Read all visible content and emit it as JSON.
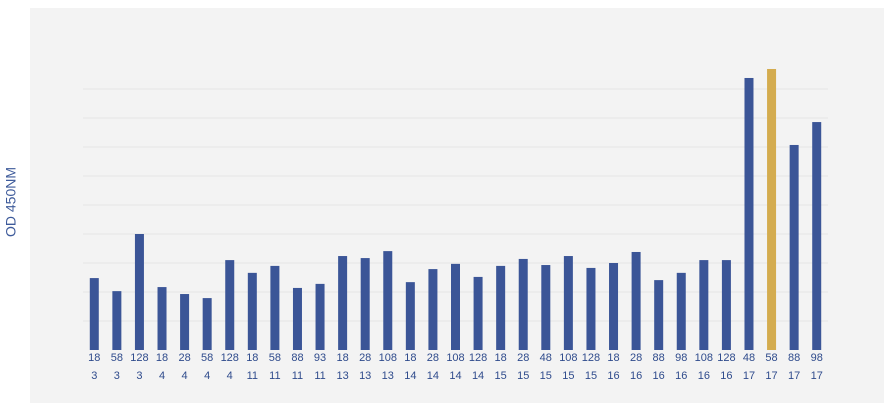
{
  "chart_data": {
    "type": "bar",
    "y_label": "OD 450NM",
    "categories": [
      [
        "18",
        "3"
      ],
      [
        "58",
        "3"
      ],
      [
        "128",
        "3"
      ],
      [
        "18",
        "4"
      ],
      [
        "28",
        "4"
      ],
      [
        "58",
        "4"
      ],
      [
        "128",
        "4"
      ],
      [
        "18",
        "11"
      ],
      [
        "58",
        "11"
      ],
      [
        "88",
        "11"
      ],
      [
        "93",
        "11"
      ],
      [
        "18",
        "13"
      ],
      [
        "28",
        "13"
      ],
      [
        "108",
        "13"
      ],
      [
        "18",
        "14"
      ],
      [
        "28",
        "14"
      ],
      [
        "108",
        "14"
      ],
      [
        "128",
        "14"
      ],
      [
        "18",
        "15"
      ],
      [
        "28",
        "15"
      ],
      [
        "48",
        "15"
      ],
      [
        "108",
        "15"
      ],
      [
        "128",
        "15"
      ],
      [
        "18",
        "16"
      ],
      [
        "28",
        "16"
      ],
      [
        "88",
        "16"
      ],
      [
        "98",
        "16"
      ],
      [
        "108",
        "16"
      ],
      [
        "128",
        "16"
      ],
      [
        "48",
        "17"
      ],
      [
        "58",
        "17"
      ],
      [
        "88",
        "17"
      ],
      [
        "98",
        "17"
      ]
    ],
    "values": [
      2.48,
      2.03,
      4.0,
      2.17,
      1.93,
      1.79,
      3.1,
      2.66,
      2.9,
      2.14,
      2.28,
      3.24,
      3.17,
      3.41,
      2.34,
      2.79,
      2.97,
      2.52,
      2.9,
      3.14,
      2.93,
      3.24,
      2.83,
      3.0,
      3.38,
      2.41,
      2.66,
      3.1,
      3.1,
      9.38,
      9.69,
      7.07,
      7.86
    ],
    "colors": [
      "#3b5597",
      "#3b5597",
      "#3b5597",
      "#3b5597",
      "#3b5597",
      "#3b5597",
      "#3b5597",
      "#3b5597",
      "#3b5597",
      "#3b5597",
      "#3b5597",
      "#3b5597",
      "#3b5597",
      "#3b5597",
      "#3b5597",
      "#3b5597",
      "#3b5597",
      "#3b5597",
      "#3b5597",
      "#3b5597",
      "#3b5597",
      "#3b5597",
      "#3b5597",
      "#3b5597",
      "#3b5597",
      "#3b5597",
      "#3b5597",
      "#3b5597",
      "#3b5597",
      "#3b5597",
      "#d4ac4f",
      "#3b5597",
      "#3b5597"
    ],
    "ylim": [
      0,
      10
    ],
    "yticks": [
      1,
      2,
      3,
      4,
      5,
      6,
      7,
      8,
      9
    ],
    "grid": true
  }
}
